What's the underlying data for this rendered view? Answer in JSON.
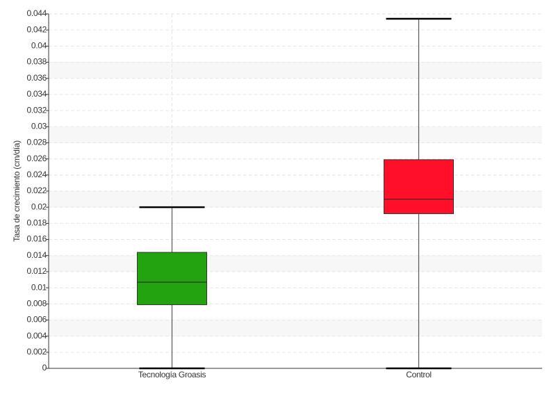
{
  "chart_data": {
    "type": "box",
    "y_label": "Tasa de crecimiento (cm/día)",
    "categories": [
      "Tecnología Groasis",
      "Control"
    ],
    "min": [
      0,
      0
    ],
    "q1": [
      0.0079,
      0.0192
    ],
    "median": [
      0.0107,
      0.021
    ],
    "q3": [
      0.0144,
      0.0259
    ],
    "max": [
      0.02,
      0.0434
    ],
    "colors": [
      "#22a30f",
      "#ff0f2a"
    ],
    "ylim": [
      0,
      0.044
    ],
    "yticks": [
      0,
      0.002,
      0.004,
      0.006,
      0.008,
      0.01,
      0.012,
      0.014,
      0.016,
      0.018,
      0.02,
      0.022,
      0.024,
      0.026,
      0.028,
      0.03,
      0.032,
      0.034,
      0.036,
      0.038,
      0.04,
      0.042,
      0.044
    ],
    "grid": true
  }
}
